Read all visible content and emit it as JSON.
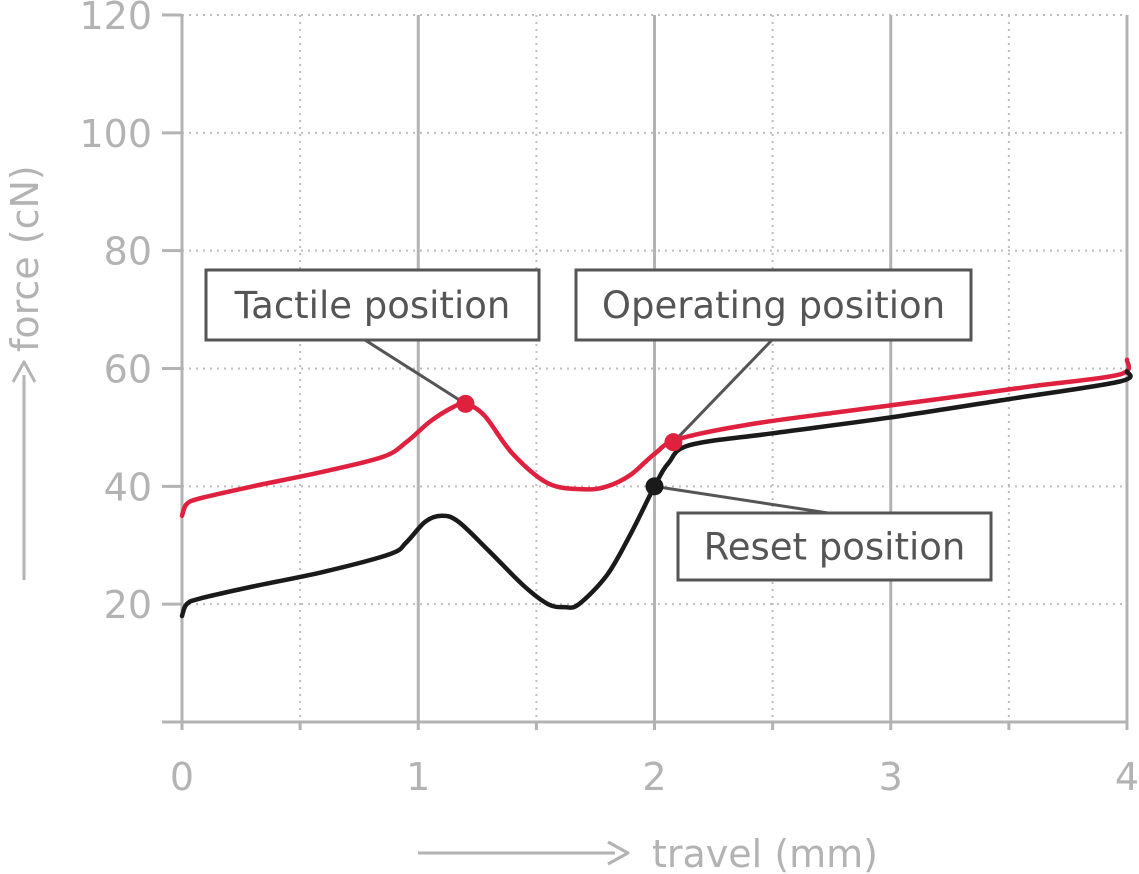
{
  "chart_data": {
    "type": "line",
    "title": "",
    "xlabel": "travel (mm)",
    "ylabel": "force (cN)",
    "xlim": [
      0,
      4
    ],
    "ylim": [
      0,
      120
    ],
    "x_ticks": [
      "0",
      "1",
      "2",
      "3",
      "4"
    ],
    "y_ticks": [
      "20",
      "40",
      "60",
      "80",
      "100",
      "120"
    ],
    "grid": true,
    "series": [
      {
        "color": "#e0203f",
        "x": [
          0,
          0.02,
          0.08,
          0.3,
          0.6,
          0.85,
          0.95,
          1.05,
          1.15,
          1.2,
          1.28,
          1.4,
          1.55,
          1.7,
          1.8,
          1.9,
          2.0,
          2.1,
          2.4,
          2.8,
          3.2,
          3.6,
          3.97,
          4.0
        ],
        "y": [
          35,
          37,
          38,
          40,
          42.5,
          45,
          47.5,
          51,
          53.5,
          54,
          52,
          45.5,
          40.5,
          39.5,
          40,
          42,
          45.5,
          48,
          50.5,
          52.7,
          54.8,
          57,
          59,
          61.5
        ]
      },
      {
        "color": "#1a1a1a",
        "x": [
          0,
          0.02,
          0.08,
          0.3,
          0.6,
          0.88,
          0.95,
          1.03,
          1.1,
          1.17,
          1.3,
          1.45,
          1.55,
          1.62,
          1.68,
          1.8,
          1.9,
          2.0,
          2.06,
          2.15,
          2.5,
          3.0,
          3.5,
          3.97,
          4.0
        ],
        "y": [
          18,
          20,
          21,
          23,
          25.5,
          28.5,
          30.5,
          34,
          35,
          34,
          29,
          23,
          20,
          19.5,
          20,
          25,
          32,
          40,
          44,
          47,
          49,
          51.7,
          54.8,
          57.8,
          59.5
        ]
      }
    ],
    "markers": [
      {
        "x": 1.2,
        "y": 54,
        "color": "#e0203f"
      },
      {
        "x": 2.08,
        "y": 47.5,
        "color": "#e0203f"
      },
      {
        "x": 2.0,
        "y": 40,
        "color": "#1a1a1a"
      }
    ],
    "annotations": [
      {
        "text": "Tactile position",
        "target_x": 1.2,
        "target_y": 54
      },
      {
        "text": "Operating position",
        "target_x": 2.08,
        "target_y": 47.5
      },
      {
        "text": "Reset position",
        "target_x": 2.0,
        "target_y": 40
      }
    ]
  }
}
